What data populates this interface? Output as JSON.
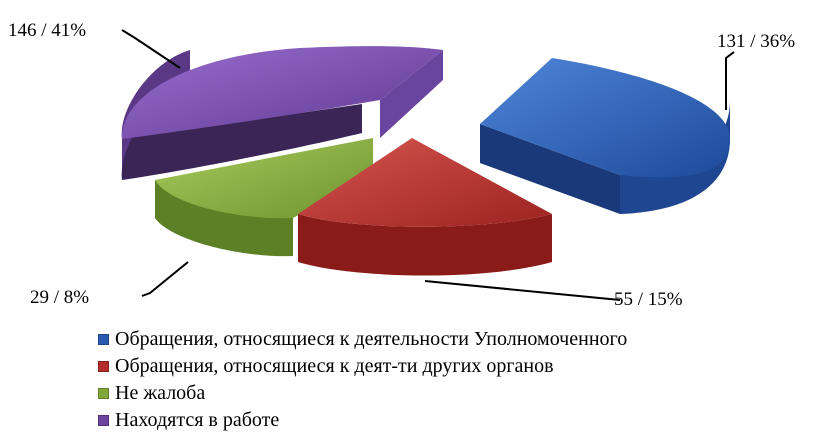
{
  "chart_data": {
    "type": "pie",
    "title": "",
    "slices": [
      {
        "name": "Обращения, относящиеся к деятельности Уполномоченного",
        "value": 131,
        "percent": 36,
        "label": "131 / 36%",
        "color": "#2a5ab0"
      },
      {
        "name": "Обращения, относящиеся к деят-ти других органов",
        "value": 55,
        "percent": 15,
        "label": "55 / 15%",
        "color": "#b52d2a"
      },
      {
        "name": "Не жалоба",
        "value": 29,
        "percent": 8,
        "label": "29 / 8%",
        "color": "#82a83b"
      },
      {
        "name": "Находятся в работе",
        "value": 146,
        "percent": 41,
        "label": "146 / 41%",
        "color": "#6d43a0"
      }
    ],
    "legend_position": "bottom",
    "style": "3d-exploded"
  }
}
